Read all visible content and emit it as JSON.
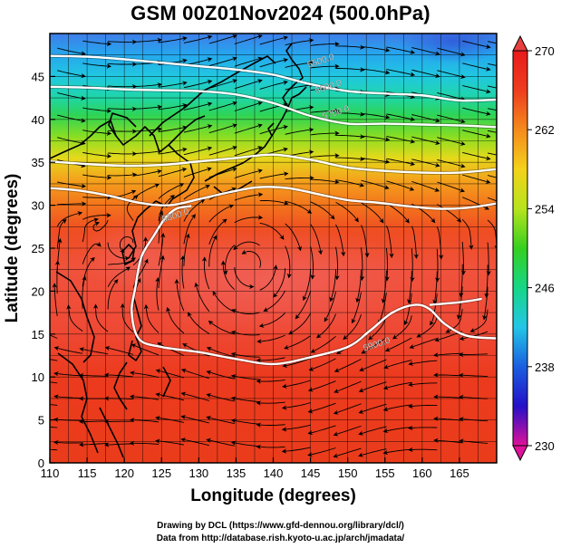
{
  "title": "GSM 00Z01Nov2024 (500.0hPa)",
  "xlabel": "Longitude (degrees)",
  "ylabel": "Latitude  (degrees)",
  "credits": [
    "Drawing by DCL (https://www.gfd-dennou.org/library/dcl/)",
    "Data from http://database.rish.kyoto-u.ac.jp/arch/jmadata/"
  ],
  "chart_data": {
    "type": "heatmap",
    "quantity": "temperature field with wind streamlines and geopotential height contours at 500.0 hPa",
    "x_ticks": [
      "110",
      "115",
      "120",
      "125",
      "130",
      "135",
      "140",
      "145",
      "150",
      "155",
      "160",
      "165"
    ],
    "y_ticks": [
      "0",
      "5",
      "10",
      "15",
      "20",
      "25",
      "30",
      "35",
      "40",
      "45"
    ],
    "xlim": [
      110,
      170
    ],
    "ylim": [
      0,
      50
    ],
    "colorbar": {
      "ticks": [
        "230",
        "238",
        "246",
        "254",
        "262",
        "270"
      ],
      "range": [
        230,
        270
      ],
      "colors": [
        "#e0119a",
        "#2410c8",
        "#1a5fe0",
        "#23c6e6",
        "#16d686",
        "#36cf1f",
        "#b6e41d",
        "#f4d21a",
        "#f58a1d",
        "#ee3c1e",
        "#e81b1b"
      ]
    },
    "contours": [
      {
        "label": "5500.0",
        "points": [
          [
            110,
            47.4
          ],
          [
            115,
            47.3
          ],
          [
            120,
            47.0
          ],
          [
            125,
            46.6
          ],
          [
            130,
            46.2
          ],
          [
            135,
            45.8
          ],
          [
            140,
            45.2
          ],
          [
            145,
            44.1
          ],
          [
            150,
            43.3
          ],
          [
            155,
            43.0
          ],
          [
            160,
            42.8
          ],
          [
            165,
            42.2
          ],
          [
            170,
            42.3
          ]
        ]
      },
      {
        "label": "5600.0",
        "points": [
          [
            110,
            43.8
          ],
          [
            115,
            43.7
          ],
          [
            120,
            43.5
          ],
          [
            125,
            43.4
          ],
          [
            130,
            43.3
          ],
          [
            135,
            42.9
          ],
          [
            140,
            41.9
          ],
          [
            145,
            40.4
          ],
          [
            150,
            39.5
          ],
          [
            155,
            39.5
          ],
          [
            160,
            39.4
          ],
          [
            165,
            39.3
          ],
          [
            170,
            39.1
          ]
        ]
      },
      {
        "label": "5700.0",
        "points": [
          [
            110,
            35.1
          ],
          [
            115,
            34.8
          ],
          [
            120,
            34.6
          ],
          [
            125,
            34.7
          ],
          [
            130,
            35.1
          ],
          [
            135,
            35.5
          ],
          [
            140,
            35.9
          ],
          [
            145,
            35.3
          ],
          [
            150,
            34.4
          ],
          [
            155,
            34.0
          ],
          [
            160,
            33.8
          ],
          [
            165,
            33.8
          ],
          [
            170,
            34.2
          ]
        ]
      },
      {
        "label": "5800.0",
        "points": [
          [
            110,
            32.0
          ],
          [
            114,
            31.7
          ],
          [
            118,
            31.1
          ],
          [
            122,
            30.3
          ],
          [
            126,
            30.0
          ],
          [
            130,
            30.7
          ],
          [
            134,
            31.5
          ],
          [
            138,
            32.1
          ],
          [
            142,
            32.0
          ],
          [
            146,
            31.3
          ],
          [
            150,
            30.6
          ],
          [
            154,
            30.3
          ],
          [
            158,
            29.9
          ],
          [
            162,
            29.6
          ],
          [
            166,
            29.7
          ],
          [
            170,
            30.2
          ]
        ]
      },
      {
        "label": "5900.0",
        "points": [
          [
            170,
            14.5
          ],
          [
            166,
            14.8
          ],
          [
            163,
            16.2
          ],
          [
            161,
            17.9
          ],
          [
            159,
            18.4
          ],
          [
            156,
            17.5
          ],
          [
            153,
            15.4
          ],
          [
            150,
            13.5
          ],
          [
            145,
            12.3
          ],
          [
            140,
            11.5
          ],
          [
            135,
            12.1
          ],
          [
            130,
            12.9
          ],
          [
            125,
            13.5
          ],
          [
            122,
            14.4
          ],
          [
            121,
            17.5
          ],
          [
            121.5,
            20.5
          ],
          [
            122.3,
            24
          ],
          [
            124,
            26.5
          ],
          [
            125.5,
            28.5
          ],
          [
            127,
            29.6
          ],
          [
            129,
            29.9
          ]
        ]
      },
      {
        "label": "5950.0",
        "points": [
          [
            168,
            19.1
          ],
          [
            165,
            18.7
          ],
          [
            161,
            18.4
          ]
        ]
      }
    ],
    "contour_label_positions": [
      {
        "label": "5500.0",
        "lon": 146.5,
        "lat": 46.5
      },
      {
        "label": "5600.0",
        "lon": 147.5,
        "lat": 43.5
      },
      {
        "label": "5700.0",
        "lon": 148.5,
        "lat": 40.5
      },
      {
        "label": "5800.0",
        "lon": 127.0,
        "lat": 28.5
      },
      {
        "label": "5900.0",
        "lon": 154.0,
        "lat": 13.5
      }
    ]
  }
}
